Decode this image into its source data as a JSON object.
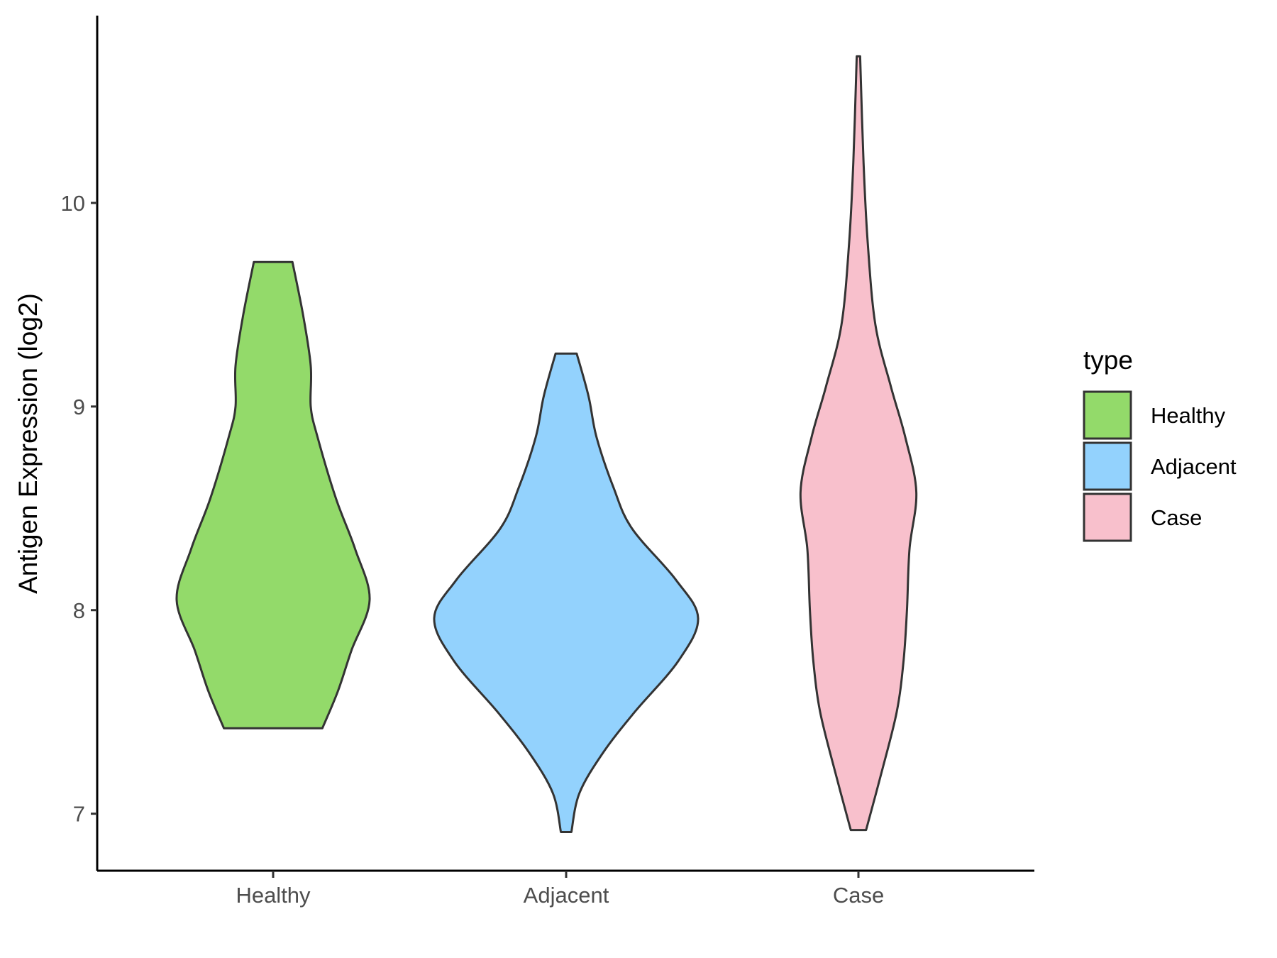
{
  "chart_data": {
    "type": "violin",
    "categories": [
      "Healthy",
      "Adjacent",
      "Case"
    ],
    "ylabel": "Antigen Expression (log2)",
    "xlabel": "",
    "ylim": [
      6.72,
      10.92
    ],
    "yticks": [
      7,
      8,
      9,
      10
    ],
    "ytick_labels": [
      "7",
      "8",
      "9",
      "10"
    ],
    "legend": {
      "title": "type",
      "placement": "right",
      "entries": [
        "Healthy",
        "Adjacent",
        "Case"
      ]
    },
    "colors": {
      "Healthy": "#93da6a",
      "Adjacent": "#93d2fd",
      "Case": "#f8c0cc",
      "outline": "#333333"
    },
    "series": [
      {
        "name": "Healthy",
        "min": 7.42,
        "max": 9.71,
        "density": [
          [
            7.42,
            0.51
          ],
          [
            7.6,
            0.67
          ],
          [
            7.8,
            0.81
          ],
          [
            8.05,
            1.0
          ],
          [
            8.3,
            0.85
          ],
          [
            8.55,
            0.65
          ],
          [
            8.85,
            0.46
          ],
          [
            9.0,
            0.39
          ],
          [
            9.2,
            0.39
          ],
          [
            9.45,
            0.31
          ],
          [
            9.71,
            0.2
          ]
        ]
      },
      {
        "name": "Adjacent",
        "min": 6.91,
        "max": 9.26,
        "density": [
          [
            6.91,
            0.04
          ],
          [
            7.1,
            0.1
          ],
          [
            7.3,
            0.28
          ],
          [
            7.5,
            0.52
          ],
          [
            7.75,
            0.85
          ],
          [
            7.96,
            1.0
          ],
          [
            8.15,
            0.83
          ],
          [
            8.4,
            0.5
          ],
          [
            8.6,
            0.36
          ],
          [
            8.85,
            0.23
          ],
          [
            9.05,
            0.17
          ],
          [
            9.26,
            0.08
          ]
        ]
      },
      {
        "name": "Case",
        "min": 6.92,
        "max": 10.72,
        "density": [
          [
            6.92,
            0.09
          ],
          [
            7.2,
            0.27
          ],
          [
            7.5,
            0.45
          ],
          [
            7.75,
            0.53
          ],
          [
            8.0,
            0.57
          ],
          [
            8.3,
            0.6
          ],
          [
            8.58,
            0.68
          ],
          [
            8.85,
            0.55
          ],
          [
            9.1,
            0.38
          ],
          [
            9.4,
            0.2
          ],
          [
            9.8,
            0.11
          ],
          [
            10.2,
            0.06
          ],
          [
            10.72,
            0.02
          ]
        ]
      }
    ]
  }
}
